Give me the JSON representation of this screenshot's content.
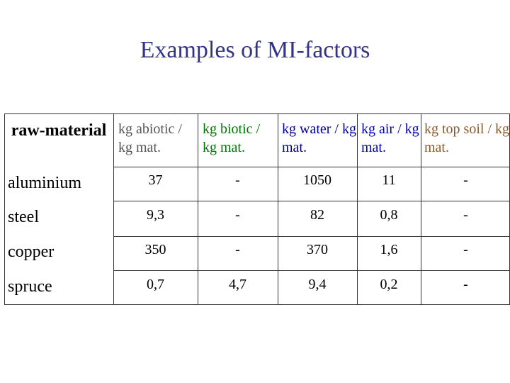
{
  "title": "Examples of MI-factors",
  "colors": {
    "title": "#333388",
    "abiotic": "#555555",
    "biotic": "#007700",
    "water": "#000099",
    "air": "#0000bb",
    "topsoil": "#8b5a2b"
  },
  "table": {
    "row_header": "raw-material",
    "columns": [
      "kg abiotic / kg mat.",
      "kg biotic / kg mat.",
      "kg water / kg mat.",
      "kg air / kg mat.",
      "kg top soil / kg mat."
    ],
    "rows": [
      {
        "name": "aluminium",
        "values": [
          "37",
          "-",
          "1050",
          "11",
          "-"
        ]
      },
      {
        "name": "steel",
        "values": [
          "9,3",
          "-",
          "82",
          "0,8",
          "-"
        ]
      },
      {
        "name": "copper",
        "values": [
          "350",
          "-",
          "370",
          "1,6",
          "-"
        ]
      },
      {
        "name": "spruce",
        "values": [
          "0,7",
          "4,7",
          "9,4",
          "0,2",
          "-"
        ]
      }
    ]
  }
}
